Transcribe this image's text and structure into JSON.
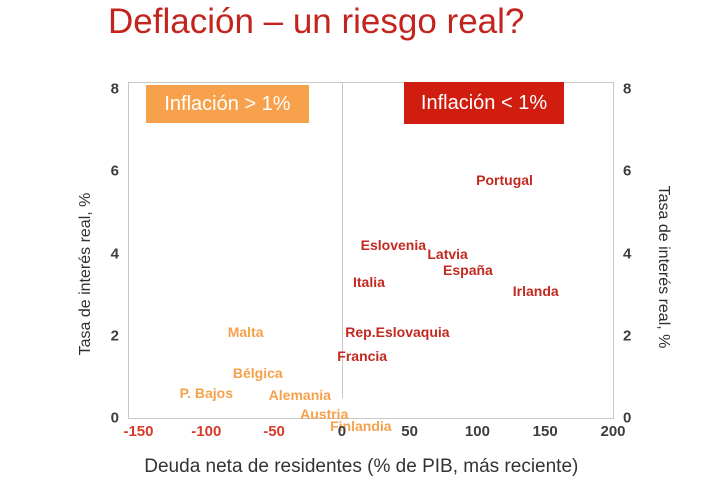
{
  "header": {
    "title": "Deflación – un riesgo real?"
  },
  "colors": {
    "title_red": "#c3251e",
    "country_red": "#c2291f",
    "country_orange": "#f5a14c",
    "annotation_orange_bg": "#f8a14c",
    "annotation_red_bg": "#d11c10",
    "negative_tick_red": "#d93a2a",
    "axis_text": "#3d3d3d",
    "plot_border": "#c9c9c9"
  },
  "chart_data": {
    "type": "scatter",
    "title": "Deflación – un riesgo real?",
    "xlabel": "Deuda neta de residentes (% de PIB, más reciente)",
    "ylabel_left": "Tasa de interés real, %",
    "ylabel_right": "Tasa de interés real, %",
    "xlim": [
      -157,
      200
    ],
    "ylim": [
      0,
      8.15
    ],
    "xticks": [
      -150,
      -100,
      -50,
      0,
      50,
      100,
      150,
      200
    ],
    "yticks": [
      0,
      2,
      4,
      6,
      8
    ],
    "grid": "vertical zero line only",
    "legend_position": "none",
    "annotations": [
      {
        "label": "Inflación > 1%",
        "bg": "#f8a14c",
        "position": "top-left"
      },
      {
        "label": "Inflación < 1%",
        "bg": "#d11c10",
        "position": "top-right"
      }
    ],
    "series": [
      {
        "name": "Inflación > 1%",
        "color": "#f5a14c",
        "points": [
          {
            "label": "Malta",
            "x": -71,
            "y": 2.1
          },
          {
            "label": "Bélgica",
            "x": -62,
            "y": 1.1
          },
          {
            "label": "P. Bajos",
            "x": -100,
            "y": 0.6
          },
          {
            "label": "Alemania",
            "x": -31,
            "y": 0.55
          },
          {
            "label": "Austria",
            "x": -13,
            "y": 0.1
          },
          {
            "label": "Finlandia",
            "x": 14,
            "y": -0.2
          }
        ]
      },
      {
        "name": "Inflación < 1%",
        "color": "#c2291f",
        "points": [
          {
            "label": "Portugal",
            "x": 120,
            "y": 5.8
          },
          {
            "label": "Eslovenia",
            "x": 38,
            "y": 4.2
          },
          {
            "label": "Latvia",
            "x": 78,
            "y": 4.0
          },
          {
            "label": "España",
            "x": 93,
            "y": 3.6
          },
          {
            "label": "Italia",
            "x": 20,
            "y": 3.3
          },
          {
            "label": "Irlanda",
            "x": 143,
            "y": 3.1
          },
          {
            "label": "Rep.Eslovaquia",
            "x": 41,
            "y": 2.1
          },
          {
            "label": "Francia",
            "x": 15,
            "y": 1.5
          }
        ]
      }
    ]
  }
}
